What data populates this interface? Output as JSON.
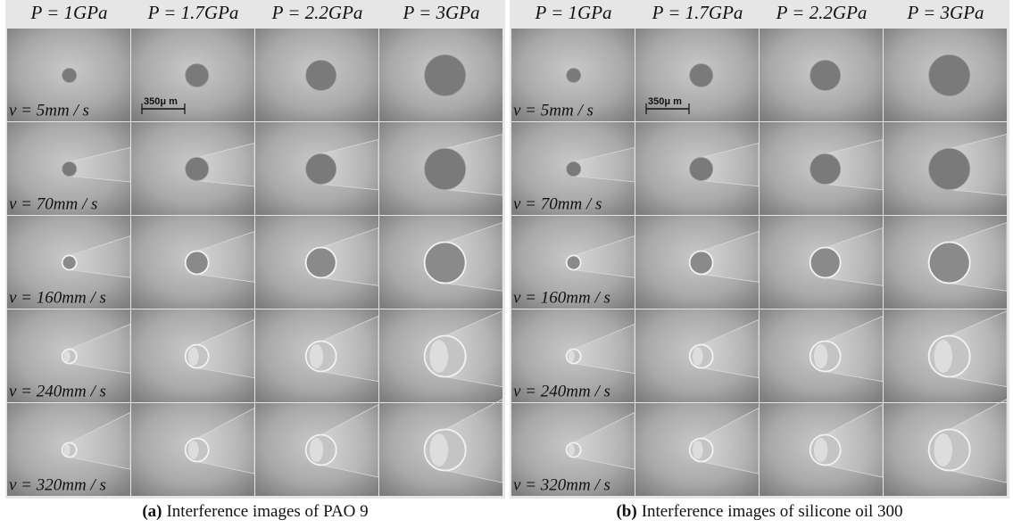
{
  "panels": [
    {
      "column_headers": [
        "P = 1GPa",
        "P = 1.7GPa",
        "P = 2.2GPa",
        "P = 3GPa"
      ],
      "row_labels": [
        "v = 5mm / s",
        "v = 70mm / s",
        "v = 160mm / s",
        "v = 240mm / s",
        "v = 320mm / s"
      ],
      "scale_label": "350μ m",
      "caption_label": "(a)",
      "caption_text": "Interference images of PAO 9"
    },
    {
      "column_headers": [
        "P = 1GPa",
        "P = 1.7GPa",
        "P = 2.2GPa",
        "P = 3GPa"
      ],
      "row_labels": [
        "v = 5mm / s",
        "v = 70mm / s",
        "v = 160mm / s",
        "v = 240mm / s",
        "v = 320mm / s"
      ],
      "scale_label": "350μ m",
      "caption_label": "(b)",
      "caption_text": "Interference images of silicone oil 300"
    }
  ]
}
